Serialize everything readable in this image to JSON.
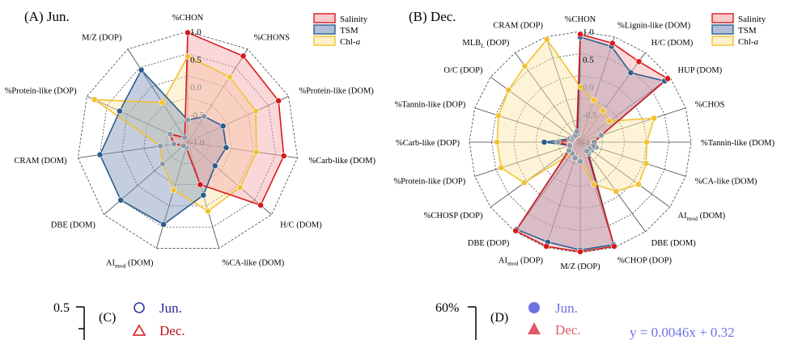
{
  "chart_data": [
    {
      "type": "radar",
      "panel_label": "(A) Jun.",
      "axes": [
        "%CHON",
        "%CHONS",
        "%Protein-like (DOM)",
        "%Carb-like (DOM)",
        "H/C (DOM)",
        "%CA-like (DOM)",
        "AImod (DOM)",
        "DBE (DOM)",
        "CRAM (DOM)",
        "%Protein-like (DOP)",
        "M/Z (DOP)"
      ],
      "axis_labels": [
        {
          "main": "%CHON"
        },
        {
          "main": "%CHONS"
        },
        {
          "main": "%Protein-like (DOM)"
        },
        {
          "main": "%Carb-like (DOM)"
        },
        {
          "main": "H/C (DOM)"
        },
        {
          "main": "%CA-like (DOM)"
        },
        {
          "main": "AI",
          "sub": "mod",
          "tail": " (DOM)"
        },
        {
          "main": "DBE (DOM)"
        },
        {
          "main": "CRAM (DOM)"
        },
        {
          "main": "%Protein-like (DOP)"
        },
        {
          "main": "M/Z (DOP)"
        }
      ],
      "rlim": [
        -1.0,
        1.0
      ],
      "rticks": [
        "1.0",
        "0.5",
        "0.0",
        "-0.5",
        "-1.0"
      ],
      "series": [
        {
          "name": "Salinity",
          "color": "#d7191c",
          "fill": "#f4a6a8",
          "values": [
            0.98,
            0.85,
            0.8,
            0.75,
            0.74,
            -0.2,
            -0.9,
            -0.9,
            -0.75,
            -0.65,
            -0.9
          ]
        },
        {
          "name": "TSM",
          "color": "#2c5d8f",
          "fill": "#7d93b8",
          "values": [
            -0.6,
            -0.45,
            -0.3,
            -0.3,
            -0.35,
            0.0,
            0.55,
            0.6,
            0.6,
            0.35,
            0.55
          ]
        },
        {
          "name": "Chl-a",
          "color": "#f2c12e",
          "fill": "#fbe7a6",
          "values": [
            0.55,
            0.4,
            0.35,
            0.25,
            0.25,
            0.3,
            -0.1,
            -0.4,
            -0.5,
            0.85,
            -0.15
          ]
        }
      ],
      "legend_position": "top-right"
    },
    {
      "type": "radar",
      "panel_label": "(B) Dec.",
      "axes": [
        "%CHON",
        "%Lignin-like (DOM)",
        "H/C (DOM)",
        "HUP (DOM)",
        "%CHOS",
        "%Tannin-like (DOM)",
        "%CA-like (DOM)",
        "AImod (DOM)",
        "DBE (DOM)",
        "%CHOP (DOP)",
        "M/Z (DOP)",
        "AImod (DOP)",
        "DBE (DOP)",
        "%CHOSP (DOP)",
        "%Protein-like (DOP)",
        "%Carb-like (DOP)",
        "%Tannin-like (DOP)",
        "O/C (DOP)",
        "MLBL (DOP)",
        "CRAM (DOP)"
      ],
      "axis_labels": [
        {
          "main": "%CHON"
        },
        {
          "main": "%Lignin-like (DOM)"
        },
        {
          "main": "H/C (DOM)"
        },
        {
          "main": "HUP (DOM)"
        },
        {
          "main": "%CHOS"
        },
        {
          "main": "%Tannin-like (DOM)"
        },
        {
          "main": "%CA-like (DOM)"
        },
        {
          "main": "AI",
          "sub": "mod",
          "tail": " (DOM)"
        },
        {
          "main": "DBE (DOM)"
        },
        {
          "main": "%CHOP (DOP)"
        },
        {
          "main": "M/Z (DOP)"
        },
        {
          "main": "AI",
          "sub": "mod",
          "tail": " (DOP)"
        },
        {
          "main": "DBE (DOP)"
        },
        {
          "main": "%CHOSP (DOP)"
        },
        {
          "main": "%Protein-like (DOP)"
        },
        {
          "main": "%Carb-like (DOP)"
        },
        {
          "main": "%Tannin-like (DOP)"
        },
        {
          "main": "O/C (DOP)"
        },
        {
          "main": "MLB",
          "sub": "L",
          "tail": " (DOP)"
        },
        {
          "main": "CRAM (DOP)"
        }
      ],
      "rlim": [
        -1.0,
        1.0
      ],
      "rticks": [
        "1.0",
        "0.5",
        "0.0",
        "-0.5",
        "-1.0"
      ],
      "series": [
        {
          "name": "Salinity",
          "color": "#d7191c",
          "fill": "#f4a6a8",
          "values": [
            0.95,
            0.88,
            0.8,
            0.95,
            -0.6,
            -0.75,
            -0.75,
            -0.8,
            -0.8,
            0.98,
            0.98,
            0.98,
            0.98,
            -0.75,
            -0.8,
            -0.6,
            -0.85,
            -0.85,
            -0.85,
            -0.8
          ]
        },
        {
          "name": "TSM",
          "color": "#2c5d8f",
          "fill": "#7d93b8",
          "values": [
            0.9,
            0.82,
            0.55,
            0.88,
            -0.6,
            -0.75,
            -0.7,
            -0.75,
            -0.75,
            0.95,
            0.95,
            0.9,
            0.95,
            -0.75,
            -0.8,
            -0.35,
            -0.8,
            -0.85,
            -0.85,
            -0.85
          ]
        },
        {
          "name": "Chl-a",
          "color": "#f2c12e",
          "fill": "#fbe7a6",
          "values": [
            0.0,
            -0.2,
            -0.3,
            -0.35,
            0.4,
            0.2,
            0.25,
            0.3,
            0.1,
            -0.2,
            -0.65,
            -0.7,
            -0.75,
            0.25,
            0.5,
            0.5,
            0.55,
            0.6,
            0.7,
            0.95
          ]
        }
      ],
      "legend_position": "top-right"
    }
  ],
  "panel_c": {
    "label": "(C)",
    "axis_tick": "0.5",
    "legend": [
      {
        "name": "Jun.",
        "marker": "open-circle",
        "color": "#2a3a9c"
      },
      {
        "name": "Dec.",
        "marker": "open-triangle",
        "color": "#d7191c"
      }
    ]
  },
  "panel_d": {
    "label": "(D)",
    "axis_tick": "60%",
    "legend": [
      {
        "name": "Jun.",
        "marker": "filled-circle",
        "color": "#6d72e0"
      },
      {
        "name": "Dec.",
        "marker": "filled-triangle",
        "color": "#e05a6a"
      }
    ],
    "equation": "y = 0.0046x + 0.32"
  }
}
